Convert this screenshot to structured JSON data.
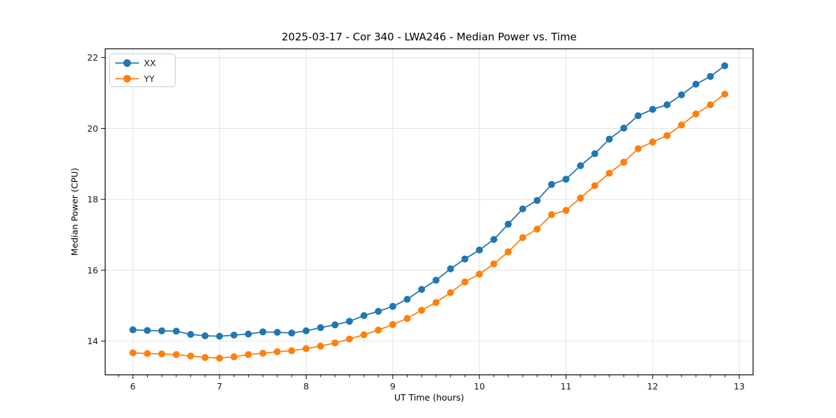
{
  "figure": {
    "background": "#ffffff"
  },
  "chart_data": {
    "type": "line",
    "title": "2025-03-17 - Cor 340 - LWA246 - Median Power vs. Time",
    "xlabel": "UT Time (hours)",
    "ylabel": "Median Power (CPU)",
    "xlim": [
      5.68,
      13.16
    ],
    "ylim": [
      13.05,
      22.25
    ],
    "x_ticks": [
      6,
      7,
      8,
      9,
      10,
      11,
      12,
      13
    ],
    "x_minor_tick_step": 0.16667,
    "y_ticks": [
      14,
      16,
      18,
      20,
      22
    ],
    "grid": true,
    "legend_position": "upper left",
    "x": [
      6.0,
      6.167,
      6.333,
      6.5,
      6.667,
      6.833,
      7.0,
      7.167,
      7.333,
      7.5,
      7.667,
      7.833,
      8.0,
      8.167,
      8.333,
      8.5,
      8.667,
      8.833,
      9.0,
      9.167,
      9.333,
      9.5,
      9.667,
      9.833,
      10.0,
      10.167,
      10.333,
      10.5,
      10.667,
      10.833,
      11.0,
      11.167,
      11.333,
      11.5,
      11.667,
      11.833,
      12.0,
      12.167,
      12.333,
      12.5,
      12.667,
      12.833
    ],
    "series": [
      {
        "name": "XX",
        "color": "#1f77b4",
        "values": [
          14.32,
          14.3,
          14.29,
          14.28,
          14.19,
          14.15,
          14.14,
          14.17,
          14.2,
          14.26,
          14.25,
          14.23,
          14.29,
          14.38,
          14.46,
          14.56,
          14.72,
          14.84,
          14.98,
          15.18,
          15.46,
          15.72,
          16.04,
          16.32,
          16.57,
          16.87,
          17.3,
          17.73,
          17.97,
          18.42,
          18.57,
          18.95,
          19.29,
          19.7,
          20.01,
          20.36,
          20.54,
          20.67,
          20.95,
          21.25,
          21.47,
          21.77
        ]
      },
      {
        "name": "YY",
        "color": "#ff7f0e",
        "values": [
          13.67,
          13.65,
          13.64,
          13.62,
          13.58,
          13.54,
          13.52,
          13.56,
          13.62,
          13.66,
          13.7,
          13.73,
          13.79,
          13.86,
          13.95,
          14.06,
          14.18,
          14.31,
          14.47,
          14.64,
          14.87,
          15.09,
          15.37,
          15.67,
          15.89,
          16.18,
          16.52,
          16.92,
          17.16,
          17.57,
          17.69,
          18.04,
          18.39,
          18.74,
          19.05,
          19.43,
          19.62,
          19.8,
          20.1,
          20.41,
          20.67,
          20.97
        ]
      }
    ]
  }
}
